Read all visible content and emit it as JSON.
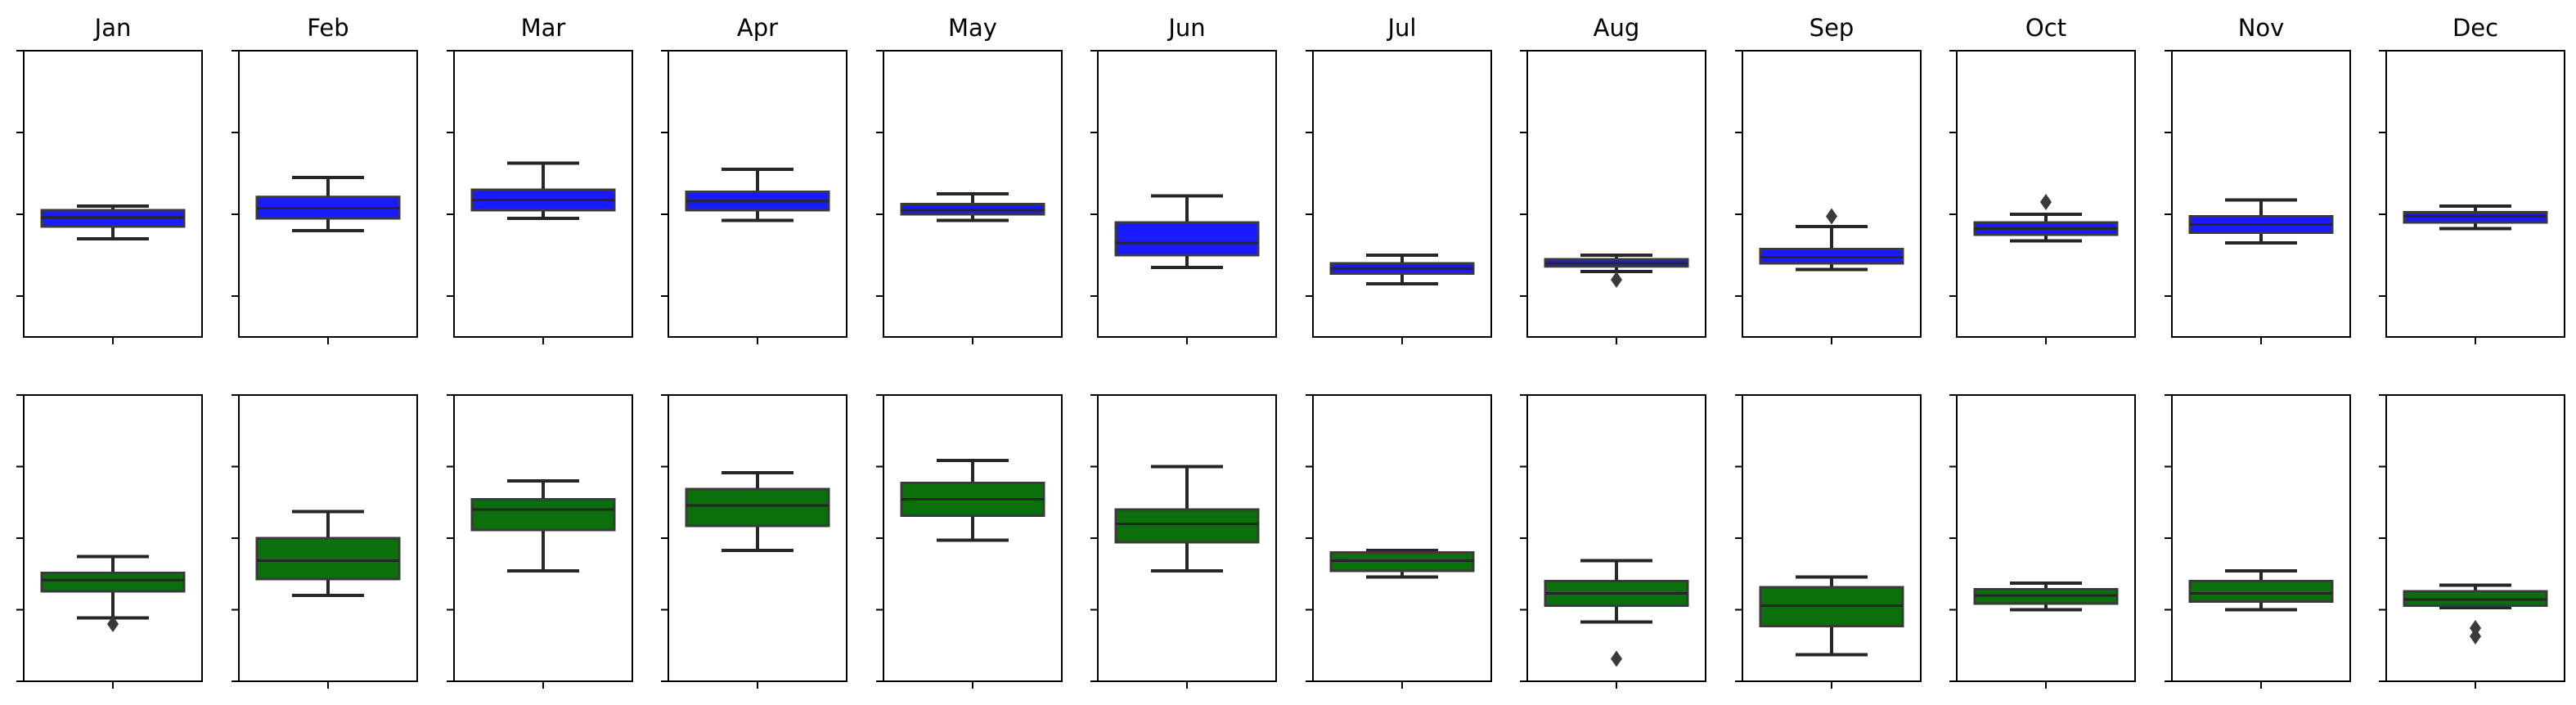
{
  "chart_data": [
    {
      "type": "box",
      "row": "top",
      "color": "#1a1aff",
      "ylim": [
        0,
        14
      ],
      "yticks": [
        2,
        6,
        10,
        14
      ],
      "categories": [
        "Jan",
        "Feb",
        "Mar",
        "Apr",
        "May",
        "Jun",
        "Jul",
        "Aug",
        "Sep",
        "Oct",
        "Nov",
        "Dec"
      ],
      "boxes": [
        {
          "whislo": 4.8,
          "q1": 5.4,
          "med": 5.85,
          "q3": 6.2,
          "whishi": 6.4,
          "fliers": []
        },
        {
          "whislo": 5.2,
          "q1": 5.8,
          "med": 6.3,
          "q3": 6.85,
          "whishi": 7.8,
          "fliers": []
        },
        {
          "whislo": 5.8,
          "q1": 6.2,
          "med": 6.7,
          "q3": 7.2,
          "whishi": 8.5,
          "fliers": []
        },
        {
          "whislo": 5.7,
          "q1": 6.2,
          "med": 6.65,
          "q3": 7.1,
          "whishi": 8.2,
          "fliers": []
        },
        {
          "whislo": 5.7,
          "q1": 6.0,
          "med": 6.2,
          "q3": 6.5,
          "whishi": 7.0,
          "fliers": []
        },
        {
          "whislo": 3.4,
          "q1": 4.0,
          "med": 4.6,
          "q3": 5.6,
          "whishi": 6.9,
          "fliers": []
        },
        {
          "whislo": 2.6,
          "q1": 3.1,
          "med": 3.35,
          "q3": 3.6,
          "whishi": 4.0,
          "fliers": []
        },
        {
          "whislo": 3.2,
          "q1": 3.45,
          "med": 3.6,
          "q3": 3.8,
          "whishi": 4.0,
          "fliers": [
            2.8
          ]
        },
        {
          "whislo": 3.3,
          "q1": 3.6,
          "med": 3.9,
          "q3": 4.3,
          "whishi": 5.4,
          "fliers": [
            5.9
          ]
        },
        {
          "whislo": 4.7,
          "q1": 5.0,
          "med": 5.3,
          "q3": 5.6,
          "whishi": 6.0,
          "fliers": [
            6.6
          ]
        },
        {
          "whislo": 4.6,
          "q1": 5.1,
          "med": 5.5,
          "q3": 5.9,
          "whishi": 6.7,
          "fliers": []
        },
        {
          "whislo": 5.3,
          "q1": 5.6,
          "med": 5.9,
          "q3": 6.1,
          "whishi": 6.4,
          "fliers": []
        }
      ]
    },
    {
      "type": "box",
      "row": "bottom",
      "color": "#0b6f0b",
      "ylim": [
        0,
        14
      ],
      "yticks": [
        0,
        3.5,
        7,
        10.5,
        14
      ],
      "categories": [
        "Jan",
        "Feb",
        "Mar",
        "Apr",
        "May",
        "Jun",
        "Jul",
        "Aug",
        "Sep",
        "Oct",
        "Nov",
        "Dec"
      ],
      "boxes": [
        {
          "whislo": 3.1,
          "q1": 4.4,
          "med": 4.95,
          "q3": 5.3,
          "whishi": 6.1,
          "fliers": [
            2.8
          ]
        },
        {
          "whislo": 4.2,
          "q1": 5.0,
          "med": 5.9,
          "q3": 7.0,
          "whishi": 8.3,
          "fliers": []
        },
        {
          "whislo": 5.4,
          "q1": 7.4,
          "med": 8.4,
          "q3": 8.9,
          "whishi": 9.8,
          "fliers": []
        },
        {
          "whislo": 6.4,
          "q1": 7.6,
          "med": 8.6,
          "q3": 9.4,
          "whishi": 10.2,
          "fliers": []
        },
        {
          "whislo": 6.9,
          "q1": 8.1,
          "med": 8.9,
          "q3": 9.7,
          "whishi": 10.8,
          "fliers": []
        },
        {
          "whislo": 5.4,
          "q1": 6.8,
          "med": 7.7,
          "q3": 8.4,
          "whishi": 10.5,
          "fliers": []
        },
        {
          "whislo": 5.1,
          "q1": 5.4,
          "med": 5.9,
          "q3": 6.3,
          "whishi": 6.4,
          "fliers": []
        },
        {
          "whislo": 2.9,
          "q1": 3.7,
          "med": 4.3,
          "q3": 4.9,
          "whishi": 5.9,
          "fliers": [
            1.1
          ]
        },
        {
          "whislo": 1.3,
          "q1": 2.7,
          "med": 3.7,
          "q3": 4.6,
          "whishi": 5.1,
          "fliers": []
        },
        {
          "whislo": 3.5,
          "q1": 3.8,
          "med": 4.2,
          "q3": 4.5,
          "whishi": 4.8,
          "fliers": []
        },
        {
          "whislo": 3.5,
          "q1": 3.9,
          "med": 4.3,
          "q3": 4.9,
          "whishi": 5.4,
          "fliers": []
        },
        {
          "whislo": 3.6,
          "q1": 3.7,
          "med": 4.0,
          "q3": 4.4,
          "whishi": 4.7,
          "fliers": [
            2.6,
            2.2
          ]
        }
      ]
    }
  ]
}
